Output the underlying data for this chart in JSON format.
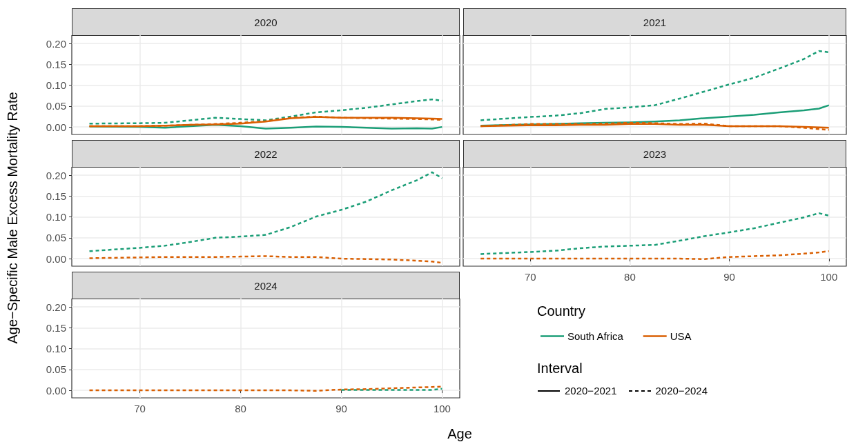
{
  "chart_data": [
    {
      "type": "line",
      "title": "2020",
      "x": [
        65,
        70,
        72.5,
        75,
        77.5,
        80,
        82.5,
        85,
        87.5,
        90,
        92.5,
        95,
        97.5,
        99,
        100
      ],
      "xlim": [
        63.25,
        101.75
      ],
      "xticks": [
        70,
        80,
        90,
        100
      ],
      "ylim": [
        -0.018,
        0.22
      ],
      "yticks": [
        {
          "value": 0,
          "label": "0.00"
        },
        {
          "value": 0.05,
          "label": "0.05"
        },
        {
          "value": 0.1,
          "label": "0.10"
        },
        {
          "value": 0.15,
          "label": "0.15"
        },
        {
          "value": 0.2,
          "label": "0.20"
        }
      ],
      "grid": true,
      "tick_labels": "y",
      "series": [
        {
          "color": "#1b9e77",
          "line_style": "solid",
          "values": [
            0.001,
            0,
            -0.002,
            0.002,
            0.005,
            0.002,
            -0.004,
            -0.002,
            0.001,
            0,
            -0.002,
            -0.004,
            -0.003,
            -0.004,
            0
          ]
        },
        {
          "color": "#1b9e77",
          "line_style": "dashed",
          "values": [
            0.008,
            0.009,
            0.01,
            0.016,
            0.022,
            0.019,
            0.016,
            0.025,
            0.035,
            0.04,
            0.046,
            0.054,
            0.062,
            0.066,
            0.063
          ]
        },
        {
          "color": "#d95f02",
          "line_style": "solid",
          "values": [
            0.002,
            0.002,
            0.003,
            0.005,
            0.006,
            0.008,
            0.013,
            0.021,
            0.024,
            0.022,
            0.022,
            0.022,
            0.021,
            0.02,
            0.019
          ]
        },
        {
          "color": "#d95f02",
          "line_style": "dashed",
          "values": [
            0.002,
            0.002,
            0.003,
            0.005,
            0.007,
            0.01,
            0.014,
            0.022,
            0.025,
            0.022,
            0.021,
            0.02,
            0.019,
            0.018,
            0.017
          ]
        }
      ]
    },
    {
      "type": "line",
      "title": "2021",
      "x": [
        65,
        70,
        72.5,
        75,
        77.5,
        80,
        82.5,
        85,
        87.5,
        90,
        92.5,
        95,
        97.5,
        99,
        100
      ],
      "xlim": [
        63.25,
        101.75
      ],
      "xticks": [
        70,
        80,
        90,
        100
      ],
      "ylim": [
        -0.018,
        0.22
      ],
      "yticks": [
        0,
        0.05,
        0.1,
        0.15,
        0.2
      ],
      "grid": true,
      "tick_labels": false,
      "series": [
        {
          "color": "#1b9e77",
          "line_style": "solid",
          "values": [
            0.003,
            0.006,
            0.007,
            0.009,
            0.01,
            0.011,
            0.013,
            0.016,
            0.021,
            0.025,
            0.029,
            0.035,
            0.04,
            0.044,
            0.052
          ]
        },
        {
          "color": "#1b9e77",
          "line_style": "dashed",
          "values": [
            0.016,
            0.024,
            0.027,
            0.033,
            0.043,
            0.047,
            0.052,
            0.068,
            0.085,
            0.102,
            0.118,
            0.14,
            0.163,
            0.182,
            0.179
          ]
        },
        {
          "color": "#d95f02",
          "line_style": "solid",
          "values": [
            0.002,
            0.004,
            0.004,
            0.005,
            0.005,
            0.007,
            0.007,
            0.005,
            0.005,
            0.002,
            0.002,
            0.002,
            0,
            -0.001,
            -0.002
          ]
        },
        {
          "color": "#d95f02",
          "line_style": "dashed",
          "values": [
            0.002,
            0.007,
            0.007,
            0.007,
            0.008,
            0.01,
            0.009,
            0.007,
            0.008,
            0.002,
            0.002,
            0.002,
            -0.002,
            -0.005,
            -0.007
          ]
        }
      ]
    },
    {
      "type": "line",
      "title": "2022",
      "ylabel": "Age−Specific Male Excess Mortality Rate",
      "x": [
        65,
        70,
        72.5,
        75,
        77.5,
        80,
        82.5,
        85,
        87.5,
        90,
        92.5,
        95,
        97.5,
        99,
        100
      ],
      "xlim": [
        63.25,
        101.75
      ],
      "xticks": [
        70,
        80,
        90,
        100
      ],
      "ylim": [
        -0.018,
        0.22
      ],
      "yticks": [
        {
          "value": 0,
          "label": "0.00"
        },
        {
          "value": 0.05,
          "label": "0.05"
        },
        {
          "value": 0.1,
          "label": "0.10"
        },
        {
          "value": 0.15,
          "label": "0.15"
        },
        {
          "value": 0.2,
          "label": "0.20"
        }
      ],
      "grid": true,
      "tick_labels": "y",
      "series": [
        {
          "color": "#1b9e77",
          "line_style": "dashed",
          "values": [
            0.018,
            0.026,
            0.031,
            0.04,
            0.05,
            0.053,
            0.057,
            0.076,
            0.101,
            0.117,
            0.137,
            0.164,
            0.188,
            0.207,
            0.193
          ]
        },
        {
          "color": "#d95f02",
          "line_style": "dashed",
          "values": [
            0.001,
            0.003,
            0.004,
            0.004,
            0.004,
            0.005,
            0.006,
            0.004,
            0.004,
            0,
            -0.001,
            -0.002,
            -0.005,
            -0.007,
            -0.01
          ]
        }
      ]
    },
    {
      "type": "line",
      "title": "2023",
      "x": [
        65,
        70,
        72.5,
        75,
        77.5,
        80,
        82.5,
        85,
        87.5,
        90,
        92.5,
        95,
        97.5,
        99,
        100
      ],
      "xlim": [
        63.25,
        101.75
      ],
      "xticks": [
        70,
        80,
        90,
        100
      ],
      "ylim": [
        -0.018,
        0.22
      ],
      "yticks": [
        0,
        0.05,
        0.1,
        0.15,
        0.2
      ],
      "grid": true,
      "tick_labels": "x",
      "series": [
        {
          "color": "#1b9e77",
          "line_style": "dashed",
          "values": [
            0.011,
            0.016,
            0.019,
            0.025,
            0.029,
            0.031,
            0.033,
            0.043,
            0.054,
            0.063,
            0.073,
            0.086,
            0.099,
            0.109,
            0.103
          ]
        },
        {
          "color": "#d95f02",
          "line_style": "dashed",
          "values": [
            0,
            0,
            0,
            0,
            0,
            0,
            0,
            0,
            -0.001,
            0.004,
            0.006,
            0.008,
            0.012,
            0.015,
            0.018
          ]
        }
      ]
    },
    {
      "type": "line",
      "title": "2024",
      "xlabel": "Age",
      "legend": "right",
      "legend_title": "Country",
      "annotations": [
        "Interval",
        "2020−2021",
        "2020−2024"
      ],
      "x": [
        65,
        70,
        72.5,
        75,
        77.5,
        80,
        82.5,
        85,
        87.5,
        90,
        92.5,
        95,
        97.5,
        99,
        100
      ],
      "xlim": [
        63.25,
        101.75
      ],
      "xticks": [
        70,
        80,
        90,
        100
      ],
      "ylim": [
        -0.018,
        0.22
      ],
      "yticks": [
        {
          "value": 0,
          "label": "0.00"
        },
        {
          "value": 0.05,
          "label": "0.05"
        },
        {
          "value": 0.1,
          "label": "0.10"
        },
        {
          "value": 0.15,
          "label": "0.15"
        },
        {
          "value": 0.2,
          "label": "0.20"
        }
      ],
      "grid": true,
      "series": [
        {
          "name": "South Africa",
          "color": "#1b9e77",
          "line_style": "dashed",
          "values": [
            null,
            null,
            null,
            null,
            null,
            null,
            null,
            null,
            null,
            0.001,
            0.001,
            0.001,
            0.001,
            0.001,
            0.004
          ]
        },
        {
          "name": "USA",
          "color": "#d95f02",
          "line_style": "dashed",
          "values": [
            0,
            0,
            0,
            0,
            0,
            0,
            0,
            0,
            -0.001,
            0.002,
            0.003,
            0.005,
            0.007,
            0.008,
            0.009
          ]
        }
      ]
    }
  ]
}
